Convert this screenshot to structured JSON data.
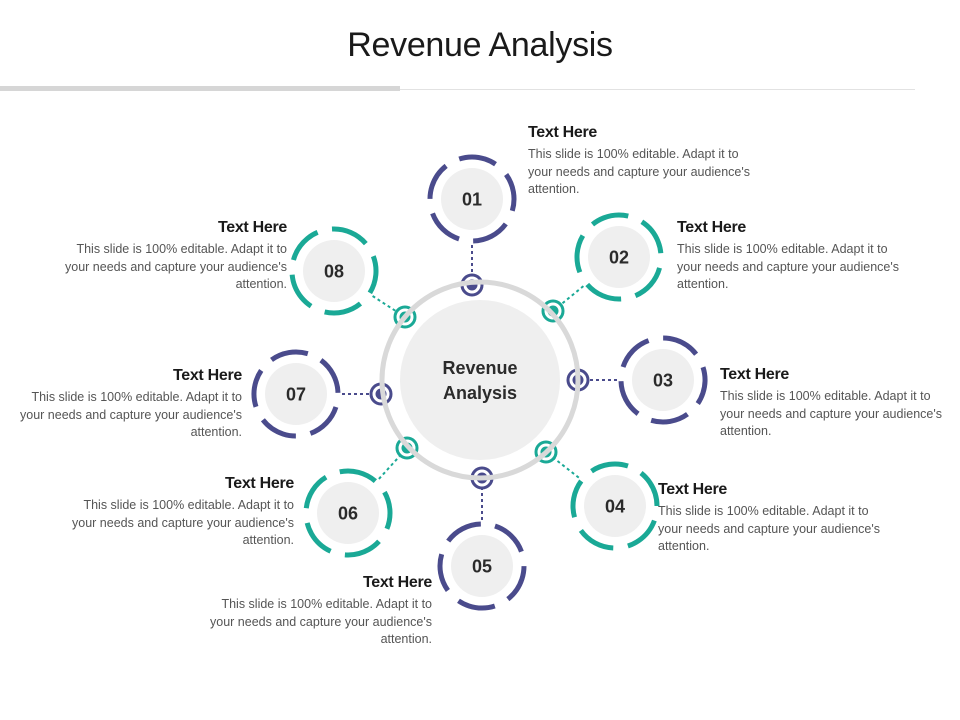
{
  "title": "Revenue Analysis",
  "center_label": [
    "Revenue",
    "Analysis"
  ],
  "colors": {
    "navy": "#4a4b8c",
    "teal": "#1aa996",
    "ring": "#d9d9d9",
    "disc": "#efefef"
  },
  "items": [
    {
      "number": "01",
      "color": "navy",
      "heading": "Text Here",
      "body": "This slide is 100% editable. Adapt it to your needs and capture your audience's attention."
    },
    {
      "number": "02",
      "color": "teal",
      "heading": "Text Here",
      "body": "This slide is 100% editable. Adapt it to your needs and capture your audience's attention."
    },
    {
      "number": "03",
      "color": "navy",
      "heading": "Text Here",
      "body": "This slide is 100% editable. Adapt it to your needs and capture your audience's attention."
    },
    {
      "number": "04",
      "color": "teal",
      "heading": "Text Here",
      "body": "This slide is 100% editable. Adapt it to your needs and capture your audience's attention."
    },
    {
      "number": "05",
      "color": "navy",
      "heading": "Text Here",
      "body": "This slide is 100% editable. Adapt it to your needs and capture your audience's attention."
    },
    {
      "number": "06",
      "color": "teal",
      "heading": "Text Here",
      "body": "This slide is 100% editable. Adapt it to your needs and capture your audience's attention."
    },
    {
      "number": "07",
      "color": "navy",
      "heading": "Text Here",
      "body": "This slide is 100% editable. Adapt it to your needs and capture your audience's attention."
    },
    {
      "number": "08",
      "color": "teal",
      "heading": "Text Here",
      "body": "This slide is 100% editable. Adapt it to your needs and capture your audience's attention."
    }
  ]
}
